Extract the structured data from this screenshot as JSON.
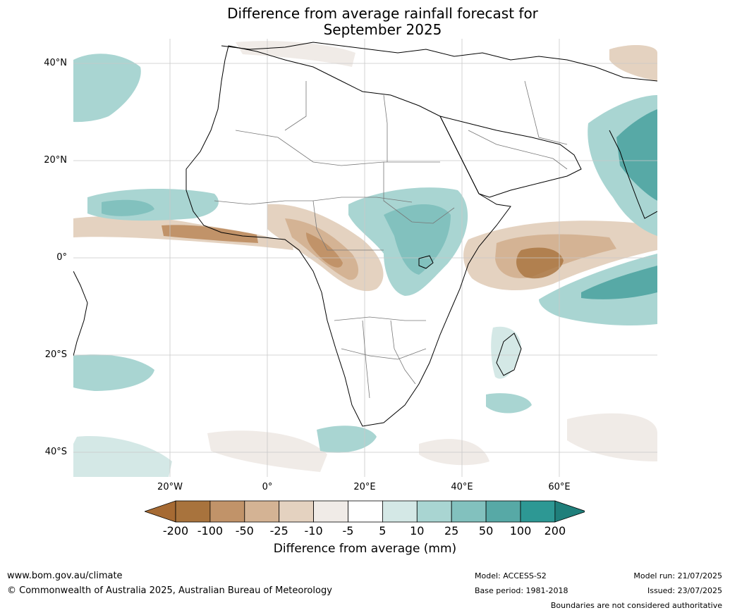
{
  "title_line1": "Difference from average rainfall forecast for",
  "title_line2": "September 2025",
  "lat_labels": [
    "40°N",
    "20°N",
    "0°",
    "20°S",
    "40°S"
  ],
  "lon_labels": [
    "20°W",
    "0°",
    "20°E",
    "40°E",
    "60°E"
  ],
  "colorbar": {
    "ticks": [
      "-200",
      "-100",
      "-50",
      "-25",
      "-10",
      "-5",
      "5",
      "10",
      "25",
      "50",
      "100",
      "200"
    ],
    "colors": [
      "#a66a33",
      "#a8733d",
      "#c19369",
      "#d4b394",
      "#e4d2c0",
      "#f0ebe7",
      "#ffffff",
      "#d4e8e6",
      "#a9d5d2",
      "#82c1be",
      "#57a9a6",
      "#2d9894",
      "#1f7f7b"
    ],
    "title": "Difference from average (mm)"
  },
  "footer": {
    "url": "www.bom.gov.au/climate",
    "copyright": "© Commonwealth of Australia 2025, Australian Bureau of Meteorology",
    "model": "Model: ACCESS-S2",
    "base_period": "Base period: 1981-2018",
    "model_run": "Model run: 21/07/2025",
    "issued": "Issued: 23/07/2025",
    "disclaimer": "Boundaries are not considered authoritative"
  }
}
